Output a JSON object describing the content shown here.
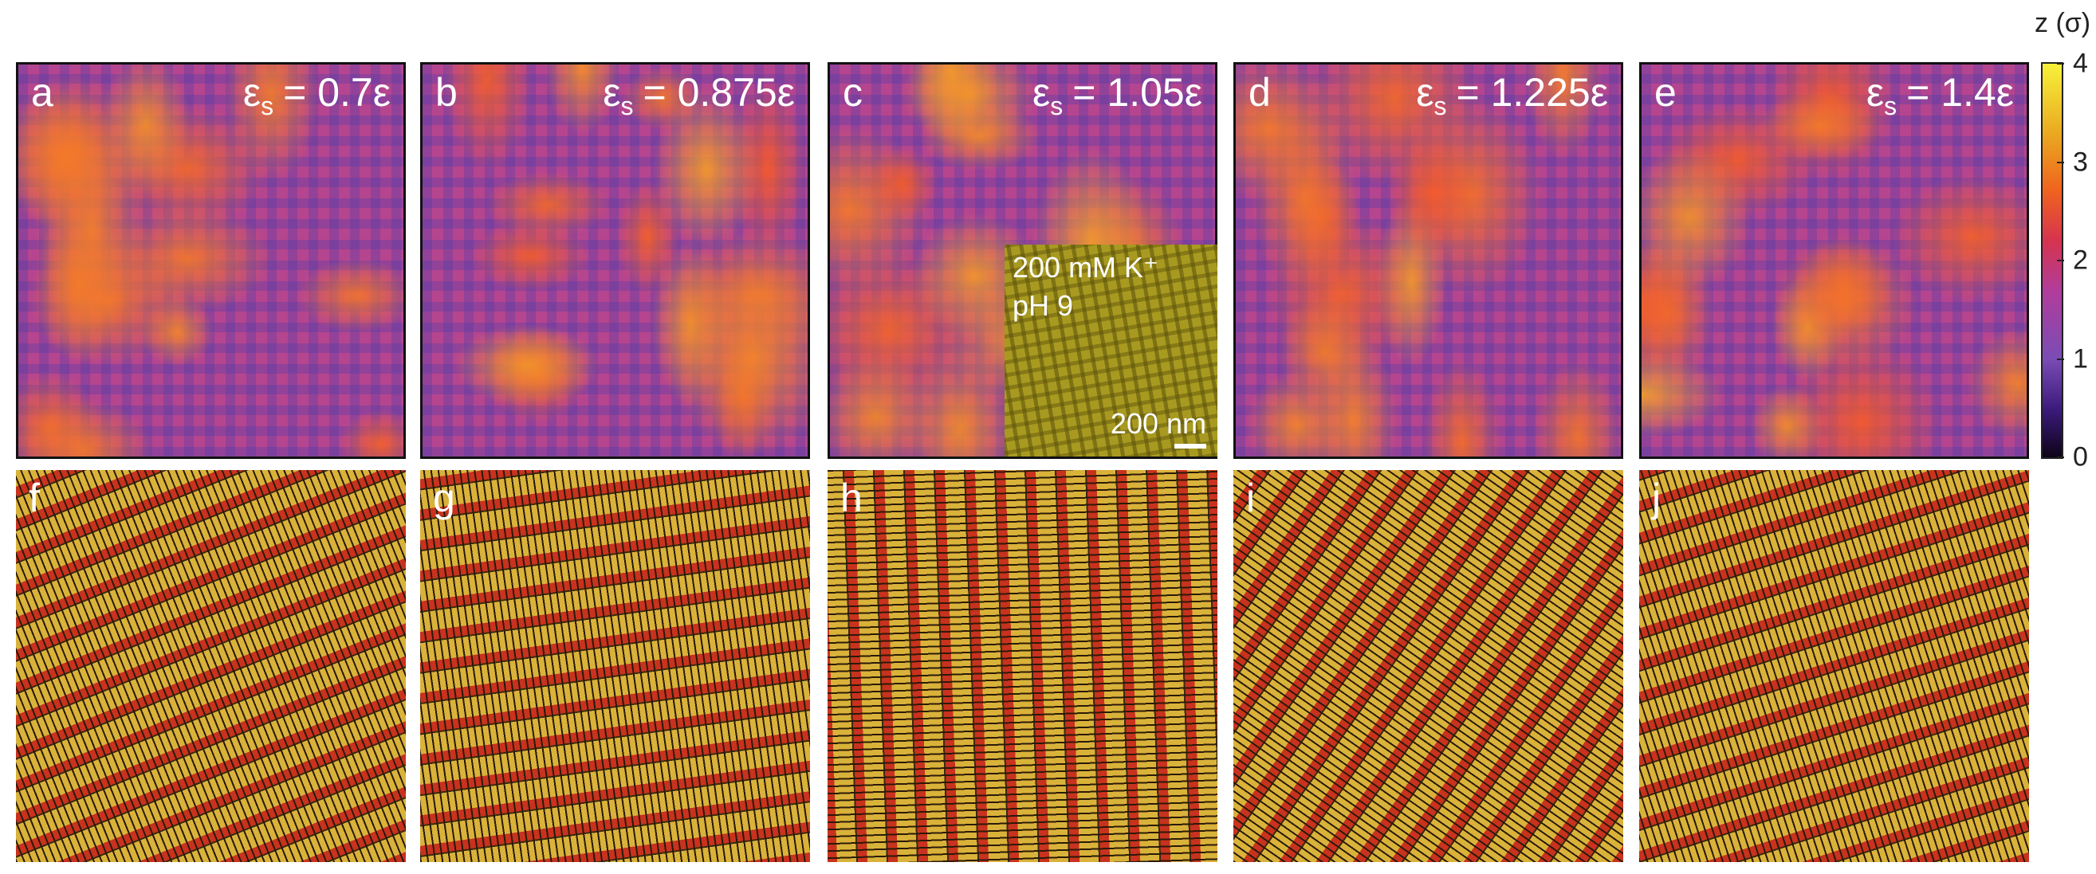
{
  "colorbar": {
    "title": "z (σ)",
    "zlim": [
      0,
      4
    ],
    "ticks": [
      0,
      1,
      2,
      3,
      4
    ]
  },
  "panels": [
    {
      "letter": "a",
      "symbol": "ε",
      "subscript": "s",
      "value": "= 0.7ε"
    },
    {
      "letter": "b",
      "symbol": "ε",
      "subscript": "s",
      "value": "= 0.875ε"
    },
    {
      "letter": "c",
      "symbol": "ε",
      "subscript": "s",
      "value": "= 1.05ε"
    },
    {
      "letter": "d",
      "symbol": "ε",
      "subscript": "s",
      "value": "= 1.225ε"
    },
    {
      "letter": "e",
      "symbol": "ε",
      "subscript": "s",
      "value": "= 1.4ε"
    }
  ],
  "sim_panels": [
    {
      "letter": "f"
    },
    {
      "letter": "g"
    },
    {
      "letter": "h"
    },
    {
      "letter": "i"
    },
    {
      "letter": "j"
    }
  ],
  "inset": {
    "line1": "200 mM K⁺",
    "line2": "pH 9",
    "scale": "200 nm"
  }
}
